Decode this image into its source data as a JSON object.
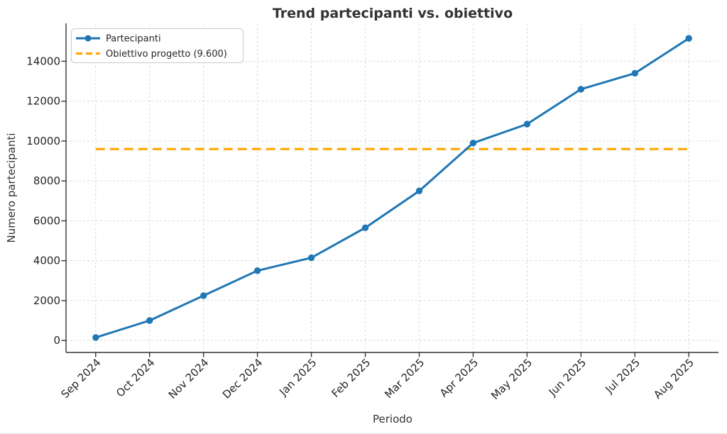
{
  "chart_data": {
    "type": "line",
    "title": "Trend partecipanti vs. obiettivo",
    "xlabel": "Periodo",
    "ylabel": "Numero partecipanti",
    "categories": [
      "Sep 2024",
      "Oct 2024",
      "Nov 2024",
      "Dec 2024",
      "Jan 2025",
      "Feb 2025",
      "Mar 2025",
      "Apr 2025",
      "May 2025",
      "Jun 2025",
      "Jul 2025",
      "Aug 2025"
    ],
    "series": [
      {
        "name": "Partecipanti",
        "color": "#1f77b4",
        "marker": "circle",
        "line_style": "solid",
        "values": [
          150,
          1000,
          2250,
          3500,
          4150,
          5650,
          7500,
          9900,
          10850,
          12600,
          13400,
          15150
        ]
      }
    ],
    "target_line": {
      "label": "Obiettivo progetto (9.600)",
      "value": 9600,
      "color": "#ffa500",
      "style": "dashed"
    },
    "yticks": [
      0,
      2000,
      4000,
      6000,
      8000,
      10000,
      12000,
      14000
    ],
    "ylim": [
      -600,
      15900
    ],
    "xlim": [
      -0.55,
      11.55
    ],
    "x_tick_rotation": 45,
    "grid": true,
    "grid_style": "dashed",
    "legend_position": "upper-left"
  }
}
